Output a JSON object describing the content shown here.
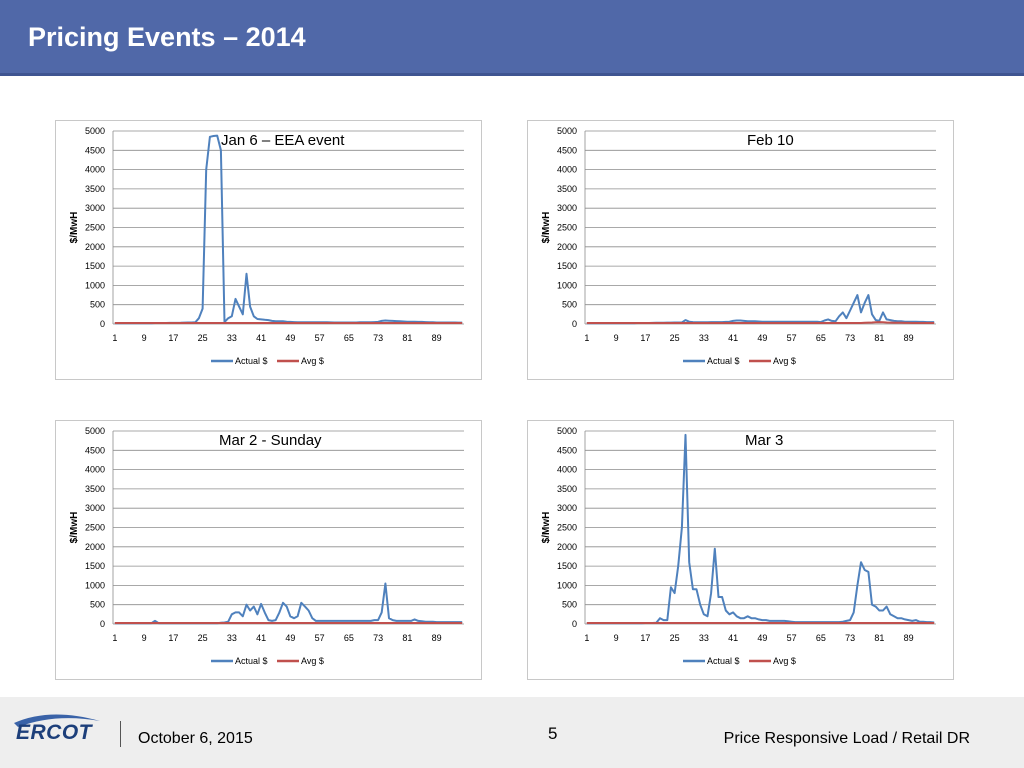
{
  "header": {
    "title": "Pricing Events – 2014"
  },
  "footer": {
    "logo_text": "ERCOT",
    "date": "October 6, 2015",
    "page_number": "5",
    "right_title": "Price Responsive Load / Retail DR"
  },
  "colors": {
    "header_bg": "#5068a8",
    "actual": "#4f81bd",
    "avg": "#c0504d"
  },
  "chart_data": [
    {
      "type": "line",
      "title": "Jan 6 – EEA event",
      "ylabel": "$/MwH",
      "ylim": [
        0,
        5000
      ],
      "yticks": [
        0,
        500,
        1000,
        1500,
        2000,
        2500,
        3000,
        3500,
        4000,
        4500,
        5000
      ],
      "xticks": [
        1,
        9,
        17,
        25,
        33,
        41,
        49,
        57,
        65,
        73,
        81,
        89
      ],
      "x_count": 96,
      "legend_position": "bottom",
      "series": [
        {
          "name": "Actual $",
          "values": [
            20,
            20,
            20,
            22,
            22,
            22,
            22,
            22,
            22,
            22,
            22,
            25,
            25,
            25,
            25,
            28,
            28,
            28,
            30,
            35,
            40,
            40,
            45,
            150,
            400,
            4000,
            4850,
            4870,
            4880,
            4500,
            50,
            150,
            200,
            650,
            450,
            250,
            1300,
            450,
            200,
            130,
            120,
            110,
            100,
            80,
            70,
            70,
            70,
            60,
            55,
            50,
            45,
            45,
            45,
            45,
            45,
            45,
            45,
            45,
            45,
            42,
            40,
            40,
            40,
            40,
            40,
            40,
            40,
            45,
            45,
            45,
            45,
            50,
            55,
            80,
            90,
            85,
            80,
            75,
            70,
            65,
            60,
            60,
            60,
            55,
            55,
            50,
            45,
            45,
            40,
            40,
            40,
            40,
            38,
            38,
            36,
            35
          ]
        },
        {
          "name": "Avg $",
          "values": [
            25,
            25,
            25,
            25,
            25,
            25,
            25,
            25,
            25,
            25,
            25,
            25,
            25,
            25,
            25,
            25,
            25,
            25,
            25,
            25,
            25,
            25,
            25,
            25,
            25,
            25,
            25,
            25,
            25,
            25,
            25,
            25,
            25,
            25,
            25,
            25,
            25,
            25,
            25,
            25,
            25,
            25,
            25,
            25,
            25,
            25,
            25,
            25,
            25,
            25,
            25,
            25,
            25,
            25,
            25,
            25,
            25,
            25,
            25,
            25,
            25,
            25,
            25,
            25,
            25,
            25,
            25,
            25,
            25,
            25,
            25,
            25,
            25,
            25,
            25,
            25,
            25,
            25,
            25,
            25,
            25,
            25,
            25,
            25,
            25,
            25,
            25,
            25,
            25,
            25,
            25,
            25,
            25,
            25,
            25,
            25
          ]
        }
      ]
    },
    {
      "type": "line",
      "title": "Feb 10",
      "ylabel": "$/MwH",
      "ylim": [
        0,
        5000
      ],
      "yticks": [
        0,
        500,
        1000,
        1500,
        2000,
        2500,
        3000,
        3500,
        4000,
        4500,
        5000
      ],
      "xticks": [
        1,
        9,
        17,
        25,
        33,
        41,
        49,
        57,
        65,
        73,
        81,
        89
      ],
      "x_count": 96,
      "legend_position": "bottom",
      "series": [
        {
          "name": "Actual $",
          "values": [
            20,
            20,
            20,
            20,
            20,
            20,
            20,
            20,
            20,
            20,
            20,
            20,
            20,
            22,
            25,
            25,
            25,
            25,
            28,
            30,
            30,
            30,
            35,
            35,
            40,
            40,
            40,
            100,
            60,
            50,
            45,
            45,
            45,
            45,
            50,
            50,
            50,
            50,
            55,
            60,
            80,
            90,
            90,
            80,
            70,
            70,
            70,
            65,
            60,
            60,
            60,
            60,
            60,
            60,
            60,
            60,
            60,
            60,
            60,
            60,
            60,
            60,
            60,
            60,
            50,
            90,
            120,
            80,
            70,
            200,
            300,
            150,
            350,
            550,
            750,
            300,
            550,
            750,
            250,
            100,
            80,
            300,
            120,
            100,
            80,
            70,
            70,
            60,
            60,
            60,
            60,
            55,
            55,
            50,
            50,
            50
          ]
        },
        {
          "name": "Avg $",
          "values": [
            25,
            25,
            25,
            25,
            25,
            25,
            25,
            25,
            25,
            25,
            25,
            25,
            25,
            25,
            25,
            25,
            25,
            25,
            25,
            25,
            25,
            25,
            25,
            25,
            25,
            25,
            25,
            25,
            25,
            25,
            25,
            25,
            25,
            25,
            25,
            25,
            25,
            25,
            25,
            25,
            25,
            25,
            25,
            25,
            25,
            25,
            25,
            25,
            25,
            25,
            25,
            25,
            25,
            25,
            25,
            25,
            25,
            25,
            25,
            25,
            25,
            25,
            25,
            25,
            25,
            25,
            25,
            25,
            25,
            25,
            25,
            25,
            25,
            25,
            25,
            25,
            30,
            35,
            40,
            45,
            50,
            45,
            40,
            35,
            30,
            30,
            30,
            28,
            28,
            25,
            25,
            25,
            25,
            25,
            25,
            25
          ]
        }
      ]
    },
    {
      "type": "line",
      "title": "Mar 2 - Sunday",
      "ylabel": "$/MwH",
      "ylim": [
        0,
        5000
      ],
      "yticks": [
        0,
        500,
        1000,
        1500,
        2000,
        2500,
        3000,
        3500,
        4000,
        4500,
        5000
      ],
      "xticks": [
        1,
        9,
        17,
        25,
        33,
        41,
        49,
        57,
        65,
        73,
        81,
        89
      ],
      "x_count": 96,
      "legend_position": "bottom",
      "series": [
        {
          "name": "Actual $",
          "values": [
            20,
            20,
            20,
            20,
            20,
            20,
            20,
            20,
            20,
            20,
            20,
            80,
            20,
            20,
            20,
            20,
            20,
            20,
            20,
            20,
            20,
            20,
            20,
            20,
            20,
            20,
            20,
            20,
            20,
            30,
            40,
            60,
            250,
            300,
            300,
            200,
            500,
            350,
            450,
            250,
            520,
            300,
            100,
            80,
            100,
            300,
            550,
            450,
            200,
            150,
            200,
            550,
            450,
            350,
            150,
            80,
            80,
            80,
            80,
            80,
            80,
            80,
            80,
            80,
            80,
            80,
            80,
            80,
            80,
            80,
            80,
            100,
            100,
            300,
            1050,
            150,
            100,
            80,
            80,
            80,
            80,
            80,
            120,
            80,
            70,
            60,
            60,
            60,
            50,
            50,
            50,
            50,
            50,
            50,
            50,
            50
          ]
        },
        {
          "name": "Avg $",
          "values": [
            25,
            25,
            25,
            25,
            25,
            25,
            25,
            25,
            25,
            25,
            25,
            25,
            25,
            25,
            25,
            25,
            25,
            25,
            25,
            25,
            25,
            25,
            25,
            25,
            25,
            25,
            25,
            25,
            25,
            25,
            25,
            25,
            25,
            25,
            25,
            25,
            25,
            25,
            25,
            25,
            25,
            25,
            25,
            25,
            25,
            25,
            25,
            25,
            25,
            25,
            25,
            25,
            25,
            25,
            25,
            25,
            25,
            25,
            25,
            25,
            25,
            25,
            25,
            25,
            25,
            25,
            25,
            25,
            25,
            25,
            25,
            25,
            25,
            25,
            25,
            25,
            25,
            25,
            25,
            25,
            25,
            25,
            25,
            25,
            25,
            25,
            25,
            25,
            25,
            25,
            25,
            25,
            25,
            25,
            25,
            25
          ]
        }
      ]
    },
    {
      "type": "line",
      "title": "Mar 3",
      "ylabel": "$/MwH",
      "ylim": [
        0,
        5000
      ],
      "yticks": [
        0,
        500,
        1000,
        1500,
        2000,
        2500,
        3000,
        3500,
        4000,
        4500,
        5000
      ],
      "xticks": [
        1,
        9,
        17,
        25,
        33,
        41,
        49,
        57,
        65,
        73,
        81,
        89
      ],
      "x_count": 96,
      "legend_position": "bottom",
      "series": [
        {
          "name": "Actual $",
          "values": [
            20,
            20,
            20,
            20,
            20,
            20,
            20,
            20,
            20,
            20,
            20,
            20,
            20,
            20,
            20,
            20,
            25,
            25,
            25,
            30,
            150,
            100,
            100,
            950,
            800,
            1500,
            2500,
            4900,
            1600,
            900,
            900,
            500,
            250,
            200,
            800,
            1950,
            700,
            700,
            350,
            250,
            300,
            200,
            150,
            150,
            200,
            150,
            150,
            120,
            100,
            100,
            80,
            80,
            80,
            80,
            80,
            70,
            60,
            50,
            50,
            50,
            50,
            50,
            50,
            50,
            50,
            50,
            50,
            50,
            50,
            50,
            60,
            80,
            100,
            300,
            1000,
            1600,
            1400,
            1350,
            500,
            450,
            350,
            350,
            450,
            250,
            200,
            150,
            150,
            120,
            100,
            80,
            100,
            60,
            60,
            50,
            50,
            40
          ]
        },
        {
          "name": "Avg $",
          "values": [
            25,
            25,
            25,
            25,
            25,
            25,
            25,
            25,
            25,
            25,
            25,
            25,
            25,
            25,
            25,
            25,
            25,
            25,
            25,
            25,
            25,
            25,
            25,
            25,
            25,
            25,
            25,
            25,
            25,
            25,
            25,
            25,
            25,
            25,
            25,
            25,
            25,
            25,
            25,
            25,
            25,
            25,
            25,
            25,
            25,
            25,
            25,
            25,
            25,
            25,
            25,
            25,
            25,
            25,
            25,
            25,
            25,
            25,
            25,
            25,
            25,
            25,
            25,
            25,
            25,
            25,
            25,
            25,
            25,
            25,
            25,
            25,
            25,
            25,
            25,
            25,
            25,
            25,
            25,
            25,
            25,
            25,
            25,
            25,
            25,
            25,
            25,
            25,
            25,
            25,
            25,
            25,
            25,
            25,
            25,
            25
          ]
        }
      ]
    }
  ]
}
